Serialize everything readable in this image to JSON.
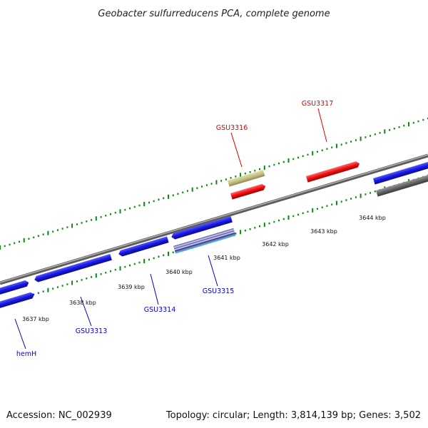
{
  "title": "Geobacter sulfurreducens PCA, complete genome",
  "footer": {
    "accession": "Accession: NC_002939",
    "summary": "Topology: circular; Length: 3,814,139 bp; Genes: 3,502"
  },
  "colors": {
    "forward_gene": "#1a1ae6",
    "reverse_gene": "#1a1ae6",
    "highlight_gene": "#ee1111",
    "khaki_gene": "#c8c080",
    "gray_gene": "#6a6a6a",
    "backbone": "#8a8a8a",
    "ticks": "#0a8a0a",
    "label_blue": "#0000cc",
    "label_red": "#dd0000"
  },
  "ticks": [
    {
      "label": "3637 kbp"
    },
    {
      "label": "3638 kbp"
    },
    {
      "label": "3639 kbp"
    },
    {
      "label": "3640 kbp"
    },
    {
      "label": "3641 kbp"
    },
    {
      "label": "3642 kbp"
    },
    {
      "label": "3643 kbp"
    },
    {
      "label": "3644 kbp"
    }
  ],
  "gene_labels": [
    {
      "id": "hemH",
      "text": "hemH",
      "color": "blue"
    },
    {
      "id": "gsu3313",
      "text": "GSU3313",
      "color": "blue"
    },
    {
      "id": "gsu3314",
      "text": "GSU3314",
      "color": "blue"
    },
    {
      "id": "gsu3315",
      "text": "GSU3315",
      "color": "blue"
    },
    {
      "id": "gsu3316",
      "text": "GSU3316",
      "color": "red"
    },
    {
      "id": "gsu3317",
      "text": "GSU3317",
      "color": "red"
    }
  ]
}
